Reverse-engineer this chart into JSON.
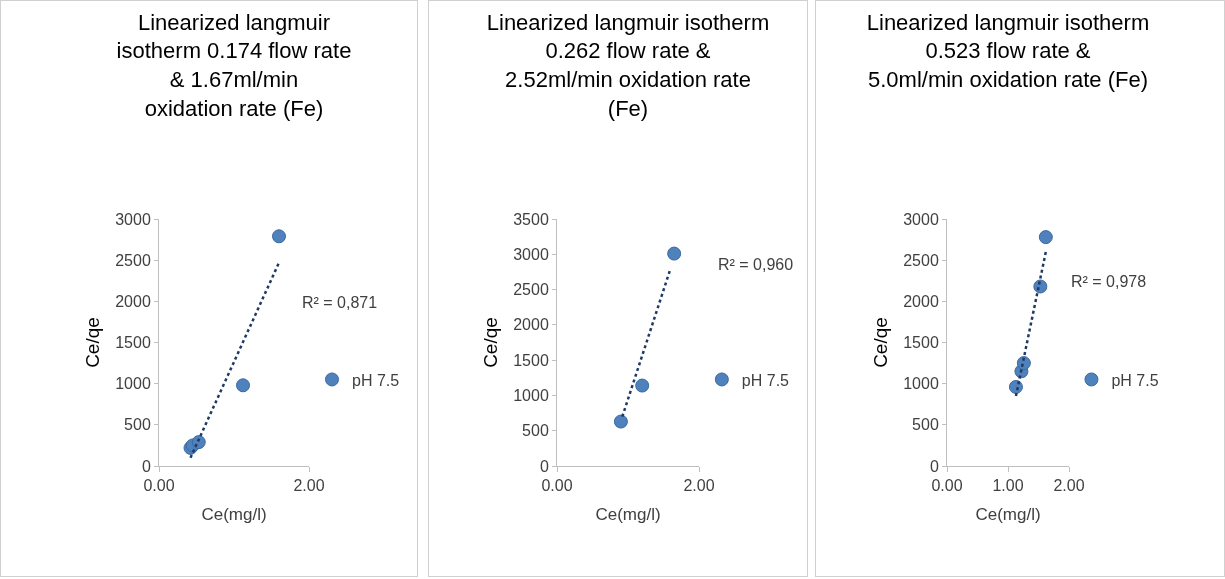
{
  "chart_data": [
    {
      "type": "scatter",
      "title": "Linearized langmuir isotherm 0.174 flow rate & 1.67ml/min oxidation rate (Fe)",
      "xlabel": "Ce(mg/l)",
      "ylabel": "Ce/qe",
      "xlim": [
        0,
        2
      ],
      "xticks": [
        {
          "value": 0,
          "label": "0.00"
        },
        {
          "value": 2,
          "label": "2.00"
        }
      ],
      "ylim": [
        0,
        3000
      ],
      "yticks": [
        0,
        500,
        1000,
        1500,
        2000,
        2500,
        3000
      ],
      "grid": false,
      "legend": "right",
      "annotations": [
        "R² = 0,871"
      ],
      "series": [
        {
          "name": "pH 7.5",
          "color": "#4f81bd",
          "marker": "circle",
          "x": [
            0.42,
            0.45,
            0.53,
            1.12,
            1.6
          ],
          "values": [
            220,
            250,
            290,
            980,
            2790
          ]
        },
        {
          "type": "line",
          "color": "#1f3864",
          "line_style": "dotted",
          "marker": "none",
          "x": [
            0.42,
            1.6
          ],
          "values": [
            100,
            2470
          ]
        }
      ]
    },
    {
      "type": "scatter",
      "title": "Linearized langmuir isotherm 0.262 flow rate & 2.52ml/min oxidation rate (Fe)",
      "xlabel": "Ce(mg/l)",
      "ylabel": "Ce/qe",
      "xlim": [
        0,
        2
      ],
      "xticks": [
        {
          "value": 0,
          "label": "0.00"
        },
        {
          "value": 2,
          "label": "2.00"
        }
      ],
      "ylim": [
        0,
        3500
      ],
      "yticks": [
        0,
        500,
        1000,
        1500,
        2000,
        2500,
        3000,
        3500
      ],
      "grid": false,
      "legend": "right",
      "annotations": [
        "R² = 0,960"
      ],
      "series": [
        {
          "name": "pH 7.5",
          "color": "#4f81bd",
          "marker": "circle",
          "x": [
            0.9,
            1.2,
            1.65
          ],
          "values": [
            630,
            1140,
            3010
          ]
        },
        {
          "type": "line",
          "color": "#1f3864",
          "line_style": "dotted",
          "marker": "none",
          "x": [
            0.92,
            1.6
          ],
          "values": [
            700,
            2800
          ]
        }
      ]
    },
    {
      "type": "scatter",
      "title": "Linearized langmuir isotherm 0.523 flow rate & 5.0ml/min oxidation rate (Fe)",
      "xlabel": "Ce(mg/l)",
      "ylabel": "Ce/qe",
      "xlim": [
        0,
        2
      ],
      "xticks": [
        {
          "value": 0,
          "label": "0.00"
        },
        {
          "value": 1,
          "label": "1.00"
        },
        {
          "value": 2,
          "label": "2.00"
        }
      ],
      "ylim": [
        0,
        3000
      ],
      "yticks": [
        0,
        500,
        1000,
        1500,
        2000,
        2500,
        3000
      ],
      "grid": false,
      "legend": "right",
      "annotations": [
        "R² = 0,978"
      ],
      "series": [
        {
          "name": "pH 7.5",
          "color": "#4f81bd",
          "marker": "circle",
          "x": [
            1.13,
            1.22,
            1.26,
            1.53,
            1.62
          ],
          "values": [
            960,
            1150,
            1250,
            2180,
            2780
          ]
        },
        {
          "type": "line",
          "color": "#1f3864",
          "line_style": "dotted",
          "marker": "none",
          "x": [
            1.13,
            1.62
          ],
          "values": [
            850,
            2600
          ]
        }
      ]
    }
  ]
}
